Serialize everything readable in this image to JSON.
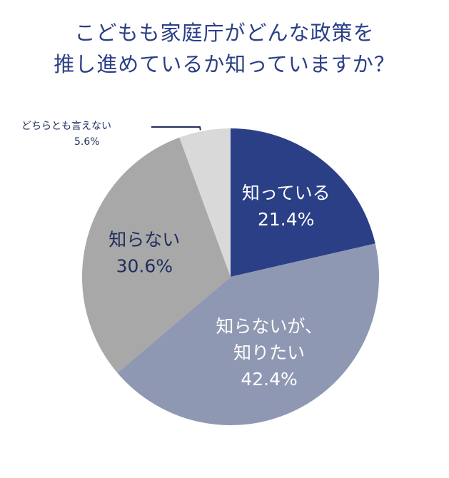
{
  "title_lines": [
    "こどもも家庭庁がどんな政策を",
    "推し進めているか知っていますか？"
  ],
  "chart_data": {
    "type": "pie",
    "title": "こどもも家庭庁がどんな政策を推し進めているか知っていますか？",
    "start_angle_deg": 0,
    "direction": "clockwise",
    "slices": [
      {
        "label_lines": [
          "知っている"
        ],
        "value": 21.4,
        "value_label": "21.4%",
        "color": "#2b3f87",
        "text_color": "#ffffff"
      },
      {
        "label_lines": [
          "知らないが、",
          "知りたい"
        ],
        "value": 42.4,
        "value_label": "42.4%",
        "color": "#8f98b3",
        "text_color": "#ffffff"
      },
      {
        "label_lines": [
          "知らない"
        ],
        "value": 30.6,
        "value_label": "30.6%",
        "color": "#a8a8a8",
        "text_color": "#1f2d5c"
      },
      {
        "label_lines": [
          "どちらとも言えない"
        ],
        "value": 5.6,
        "value_label": "5.6%",
        "color": "#d9d9d9",
        "text_color": "#1f2d5c",
        "label_outside": true
      }
    ]
  }
}
